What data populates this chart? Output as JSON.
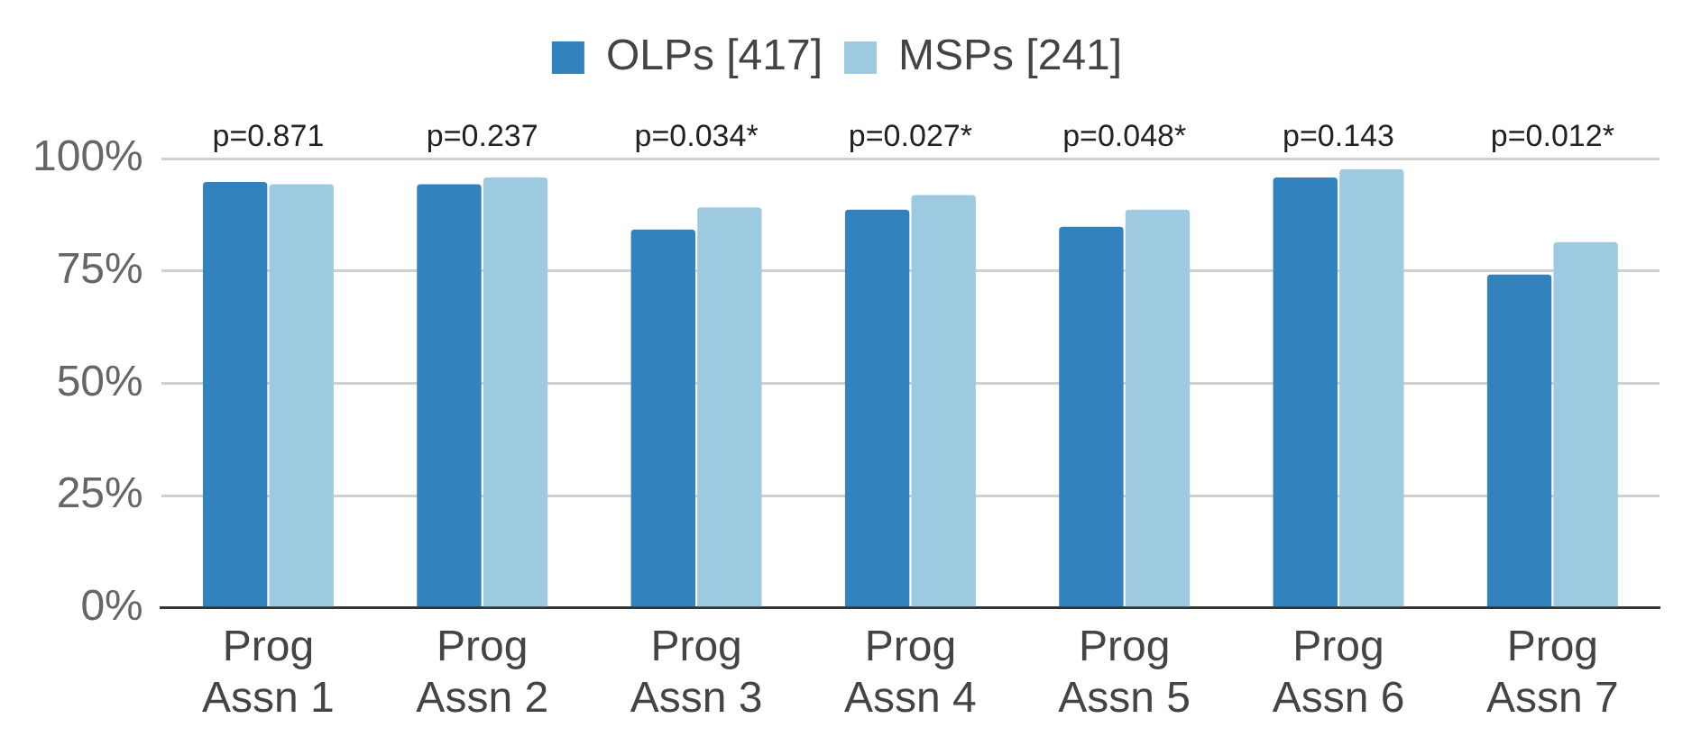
{
  "chart_data": {
    "type": "bar",
    "categories": [
      "Prog Assn 1",
      "Prog Assn 2",
      "Prog Assn 3",
      "Prog Assn 4",
      "Prog Assn 5",
      "Prog Assn 6",
      "Prog Assn 7"
    ],
    "series": [
      {
        "name": "OLPs [417]",
        "color": "#3182bd",
        "values": [
          94.8,
          94.3,
          84.2,
          88.6,
          84.8,
          95.8,
          74.2
        ]
      },
      {
        "name": "MSPs [241]",
        "color": "#9ecae1",
        "values": [
          94.3,
          95.8,
          89.1,
          91.9,
          88.6,
          97.6,
          81.4
        ]
      }
    ],
    "ylim": [
      0,
      100
    ],
    "yticks": [
      {
        "value": 0,
        "label": "0%"
      },
      {
        "value": 25,
        "label": "25%"
      },
      {
        "value": 50,
        "label": "50%"
      },
      {
        "value": 75,
        "label": "75%"
      },
      {
        "value": 100,
        "label": "100%"
      }
    ],
    "grid": "y",
    "legend": "top",
    "annotations": [
      "p=0.871",
      "p=0.237",
      "p=0.034*",
      "p=0.027*",
      "p=0.048*",
      "p=0.143",
      "p=0.012*"
    ]
  }
}
